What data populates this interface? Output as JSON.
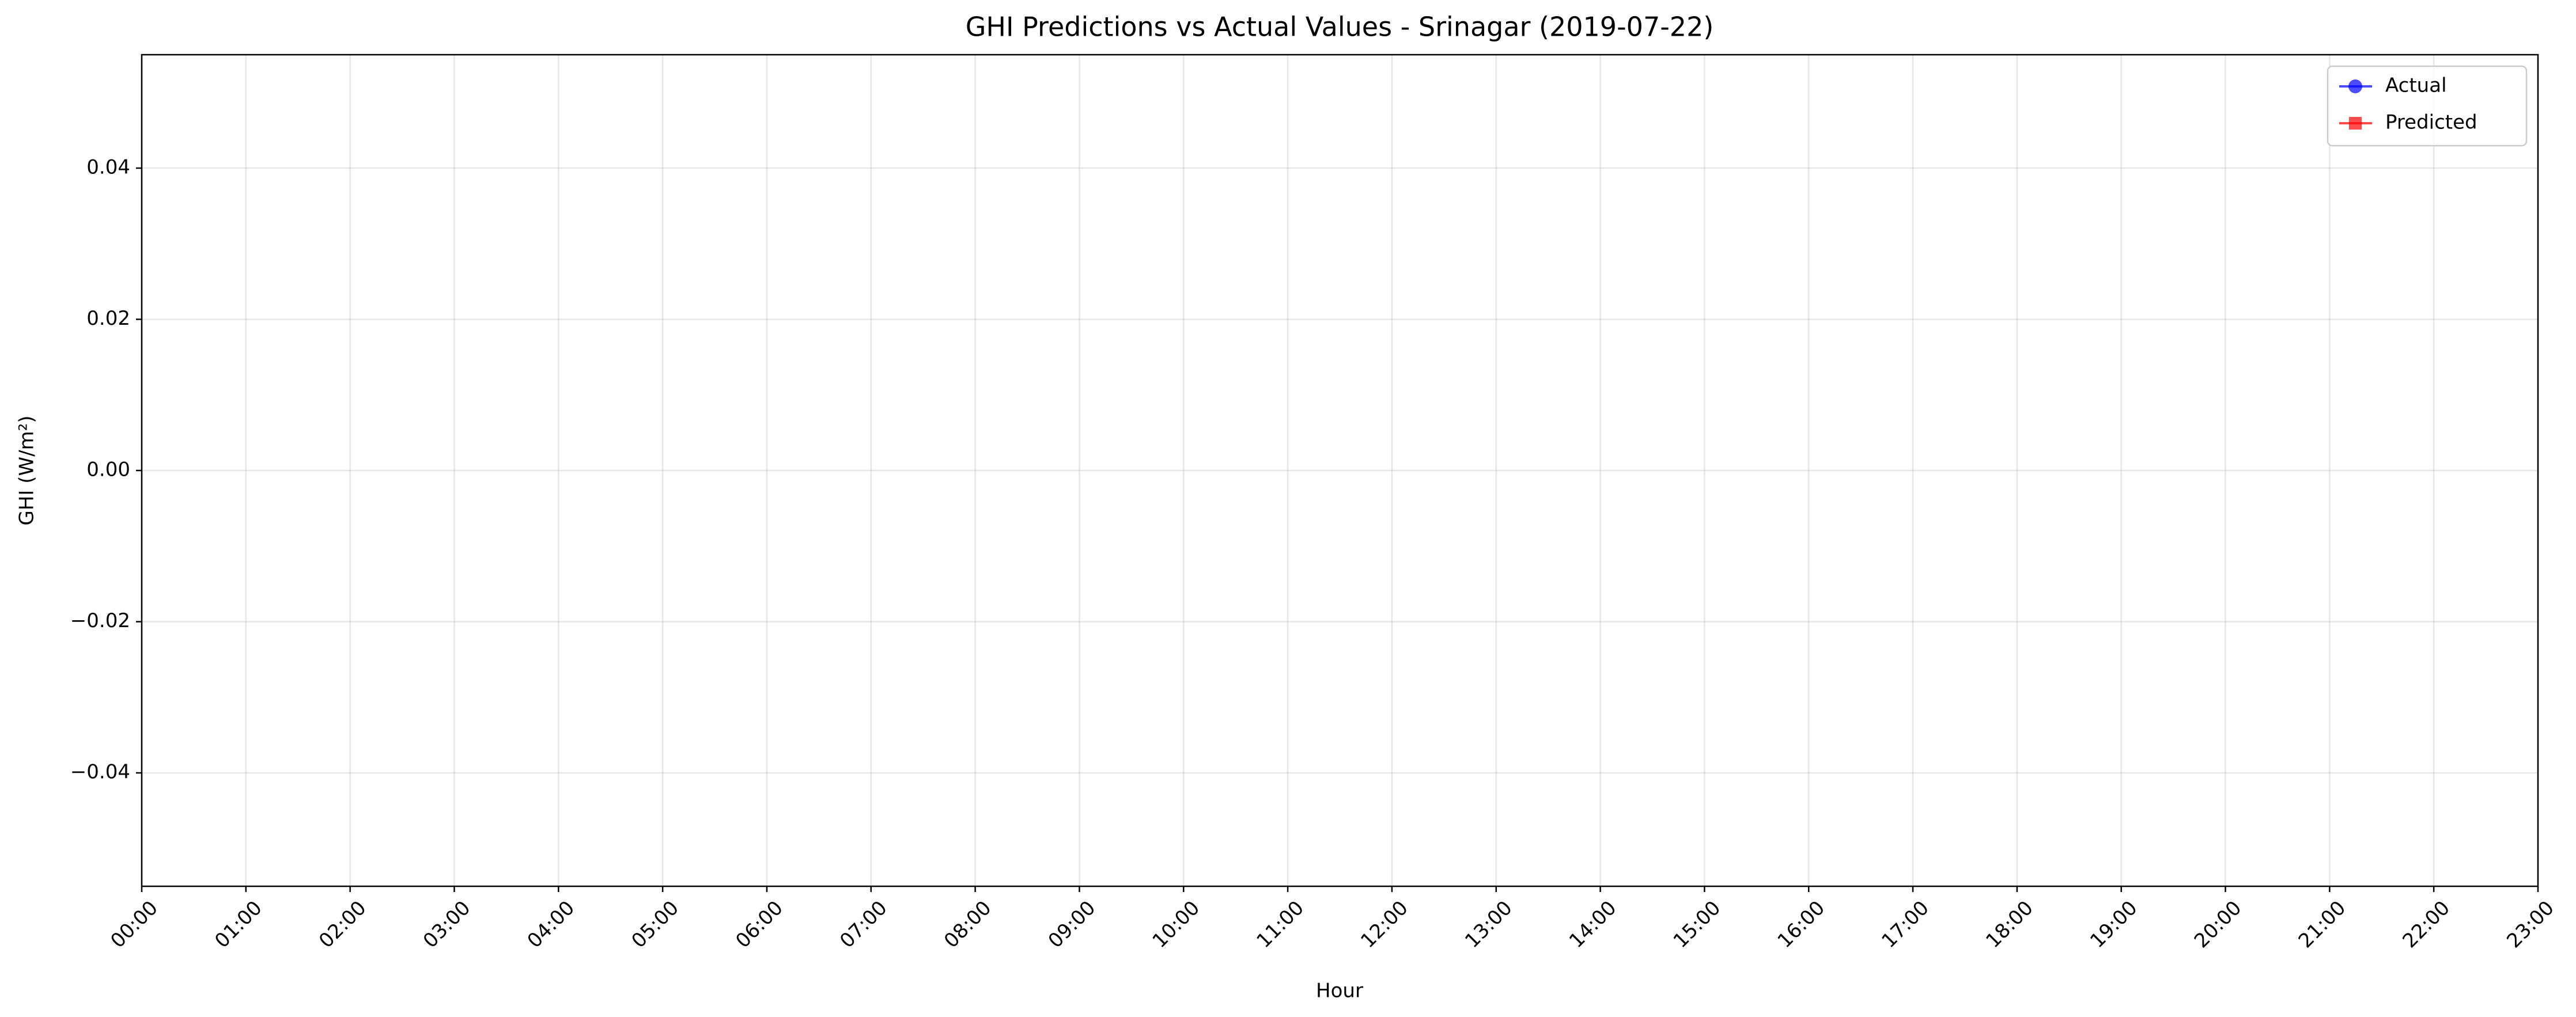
{
  "chart_data": {
    "type": "line",
    "title": "GHI Predictions vs Actual Values - Srinagar (2019-07-22)",
    "xlabel": "Hour",
    "ylabel": "GHI (W/m²)",
    "x": [],
    "series": [
      {
        "name": "Actual",
        "color": "#0000ff",
        "marker": "circle",
        "values": []
      },
      {
        "name": "Predicted",
        "color": "#ff0000",
        "marker": "square",
        "values": []
      }
    ],
    "xlim": [
      0,
      23
    ],
    "xticks": [
      {
        "value": 0,
        "label": "00:00"
      },
      {
        "value": 1,
        "label": "01:00"
      },
      {
        "value": 2,
        "label": "02:00"
      },
      {
        "value": 3,
        "label": "03:00"
      },
      {
        "value": 4,
        "label": "04:00"
      },
      {
        "value": 5,
        "label": "05:00"
      },
      {
        "value": 6,
        "label": "06:00"
      },
      {
        "value": 7,
        "label": "07:00"
      },
      {
        "value": 8,
        "label": "08:00"
      },
      {
        "value": 9,
        "label": "09:00"
      },
      {
        "value": 10,
        "label": "10:00"
      },
      {
        "value": 11,
        "label": "11:00"
      },
      {
        "value": 12,
        "label": "12:00"
      },
      {
        "value": 13,
        "label": "13:00"
      },
      {
        "value": 14,
        "label": "14:00"
      },
      {
        "value": 15,
        "label": "15:00"
      },
      {
        "value": 16,
        "label": "16:00"
      },
      {
        "value": 17,
        "label": "17:00"
      },
      {
        "value": 18,
        "label": "18:00"
      },
      {
        "value": 19,
        "label": "19:00"
      },
      {
        "value": 20,
        "label": "20:00"
      },
      {
        "value": 21,
        "label": "21:00"
      },
      {
        "value": 22,
        "label": "22:00"
      },
      {
        "value": 23,
        "label": "23:00"
      }
    ],
    "ylim": [
      -0.055,
      0.055
    ],
    "yticks": [
      {
        "value": -0.04,
        "label": "−0.04"
      },
      {
        "value": -0.02,
        "label": "−0.02"
      },
      {
        "value": 0,
        "label": "0.00"
      },
      {
        "value": 0.02,
        "label": "0.02"
      },
      {
        "value": 0.04,
        "label": "0.04"
      }
    ],
    "grid": true,
    "legend": "upper right"
  }
}
